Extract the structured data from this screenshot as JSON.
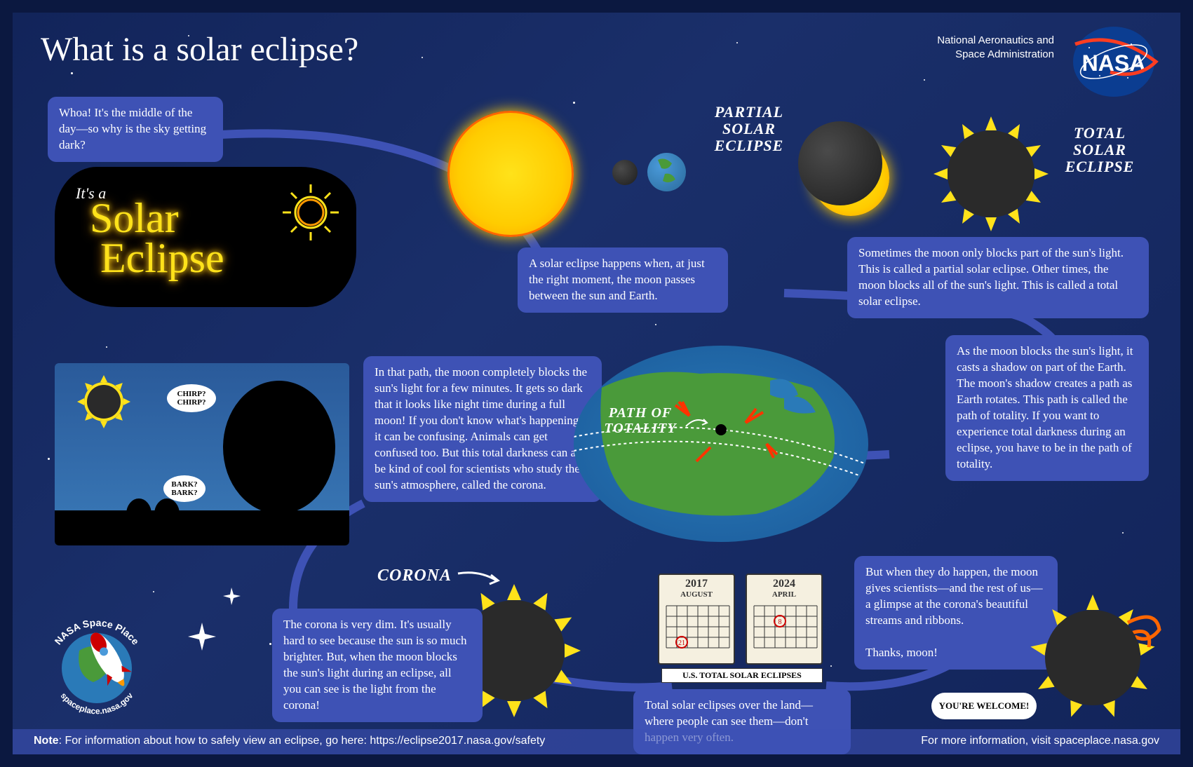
{
  "title": "What is a solar eclipse?",
  "agency_line1": "National Aeronautics and",
  "agency_line2": "Space Administration",
  "nasa_logo_text": "NASA",
  "neon_prefix": "It's a",
  "neon_main": "Solar Eclipse",
  "labels": {
    "partial": "PARTIAL SOLAR ECLIPSE",
    "total": "TOTAL SOLAR ECLIPSE",
    "path": "PATH OF TOTALITY",
    "corona": "CORONA",
    "calendars_caption": "U.S. TOTAL SOLAR ECLIPSES"
  },
  "bubbles": {
    "b1": "Whoa! It's the middle of the day—so why is the sky getting dark?",
    "b2": "A solar eclipse happens when, at just the right moment, the moon passes between the sun and Earth.",
    "b3": "Sometimes the moon only blocks part of the sun's light. This is called a partial solar eclipse. Other times, the moon blocks all of the sun's light. This is called a total solar eclipse.",
    "b4": "As the moon blocks the sun's light, it casts a shadow on part of the Earth. The moon's shadow creates a path as Earth rotates. This path is called the path of totality. If you want to experience total darkness during an eclipse, you have to be in the path of totality.",
    "b5": "In that path, the moon completely blocks the sun's light for a few minutes. It gets so dark that it looks like night time during a full moon! If you don't know what's happening, it can be confusing. Animals can get confused too. But this total darkness can also be kind of cool for scientists who study the sun's atmosphere, called the corona.",
    "b6": "The corona is very dim. It's usually hard to see because the sun is so much brighter. But, when the moon blocks the sun's light during an eclipse, all you can see is the light from the corona!",
    "b7": "Total solar eclipses over the land—where people can see them—don't happen very often.",
    "b8": "But when they do happen, the moon gives scientists—and the rest of us—a glimpse at the corona's beautiful streams and ribbons.\n\nThanks, moon!"
  },
  "speech": {
    "chirp": "CHIRP? CHIRP?",
    "bark": "BARK? BARK?",
    "welcome": "YOU'RE WELCOME!"
  },
  "calendars": {
    "cal1_year": "2017",
    "cal1_month": "AUGUST",
    "cal1_day": "21",
    "cal2_year": "2024",
    "cal2_month": "APRIL",
    "cal2_day": "8"
  },
  "footer": {
    "note": "Note: For information about how to safely view an eclipse, go here: https://eclipse2017.nasa.gov/safety",
    "more": "For more information, visit spaceplace.nasa.gov"
  },
  "space_place": {
    "top": "NASA Space Place",
    "bottom": "spaceplace.nasa.gov"
  },
  "colors": {
    "bubble": "#3e52b5",
    "sun": "#ffcc00",
    "bg": "#12245a",
    "green": "#4a9a3a"
  }
}
